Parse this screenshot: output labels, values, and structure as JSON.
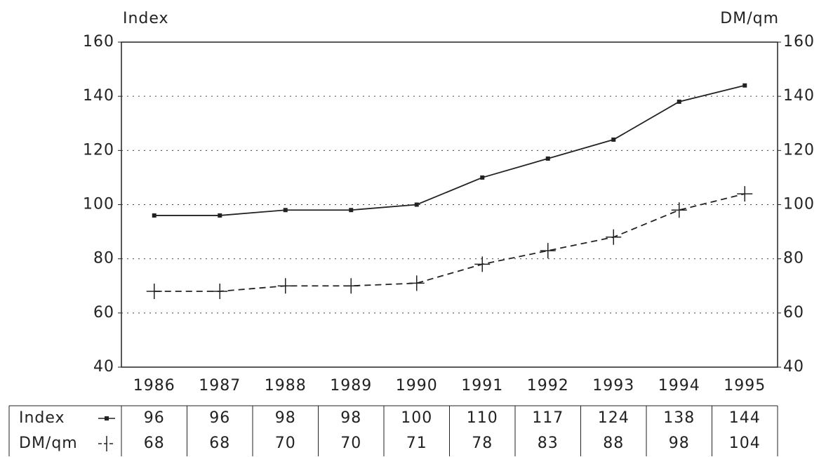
{
  "chart_data": {
    "type": "line",
    "ylabel": "Index",
    "y2label": "DM/qm",
    "categories": [
      "1986",
      "1987",
      "1988",
      "1989",
      "1990",
      "1991",
      "1992",
      "1993",
      "1994",
      "1995"
    ],
    "series": [
      {
        "name": "Index",
        "color": "#222222",
        "marker": "square",
        "dash": false,
        "values": [
          96,
          96,
          98,
          98,
          100,
          110,
          117,
          124,
          138,
          144
        ]
      },
      {
        "name": "DM/qm",
        "color": "#222222",
        "marker": "plus",
        "dash": true,
        "axis": "y2",
        "values": [
          68,
          68,
          70,
          70,
          71,
          78,
          83,
          88,
          98,
          104
        ]
      }
    ],
    "ylim": [
      40,
      160
    ],
    "yticks": [
      40,
      60,
      80,
      100,
      120,
      140,
      160
    ],
    "y2lim": [
      40,
      160
    ],
    "y2ticks": [
      40,
      60,
      80,
      100,
      120,
      140,
      160
    ],
    "grid": true
  }
}
